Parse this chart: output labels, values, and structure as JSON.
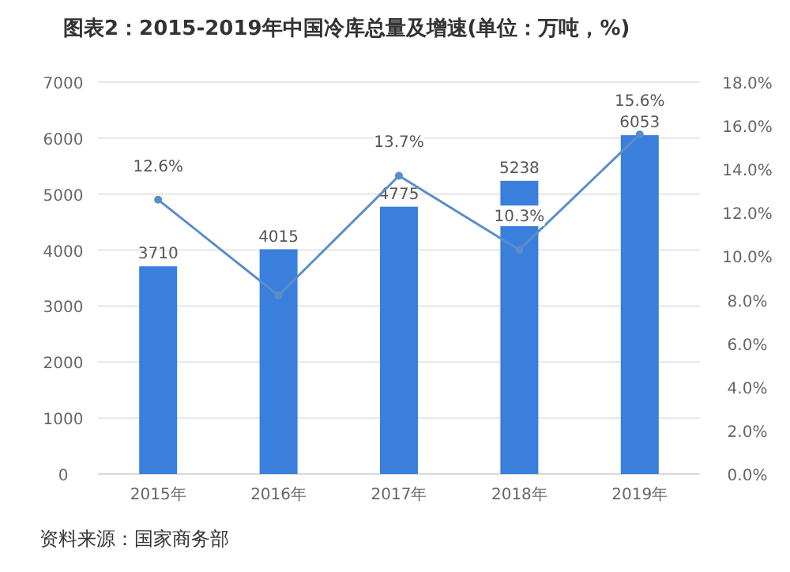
{
  "chart_data": {
    "type": "bar",
    "title": "图表2：2015-2019年中国冷库总量及增速(单位：万吨，%)",
    "categories": [
      "2015年",
      "2016年",
      "2017年",
      "2018年",
      "2019年"
    ],
    "series": [
      {
        "type": "bar",
        "color": "#3a7fdc",
        "values": [
          3710,
          4015,
          4775,
          5238,
          6053
        ],
        "value_labels": [
          "3710",
          "4015",
          "4775",
          "5238",
          "6053"
        ]
      },
      {
        "type": "line",
        "axis": "y2",
        "color": "#5b8ec9",
        "marker": "circle",
        "values": [
          12.6,
          8.2,
          13.7,
          10.3,
          15.6
        ],
        "value_labels": [
          "12.6%",
          null,
          "13.7%",
          "10.3%",
          "15.6%"
        ]
      }
    ],
    "ylim": [
      0,
      7000
    ],
    "yticks": [
      0,
      1000,
      2000,
      3000,
      4000,
      5000,
      6000,
      7000
    ],
    "y2lim": [
      0,
      18
    ],
    "y2ticks": [
      {
        "value": 0,
        "label": "0.0%"
      },
      {
        "value": 2,
        "label": "2.0%"
      },
      {
        "value": 4,
        "label": "4.0%"
      },
      {
        "value": 6,
        "label": "6.0%"
      },
      {
        "value": 8,
        "label": "8.0%"
      },
      {
        "value": 10,
        "label": "10.0%"
      },
      {
        "value": 12,
        "label": "12.0%"
      },
      {
        "value": 14,
        "label": "14.0%"
      },
      {
        "value": 16,
        "label": "16.0%"
      },
      {
        "value": 18,
        "label": "18.0%"
      }
    ],
    "grid": "y",
    "annotations": [
      "资料来源：国家商务部"
    ]
  }
}
